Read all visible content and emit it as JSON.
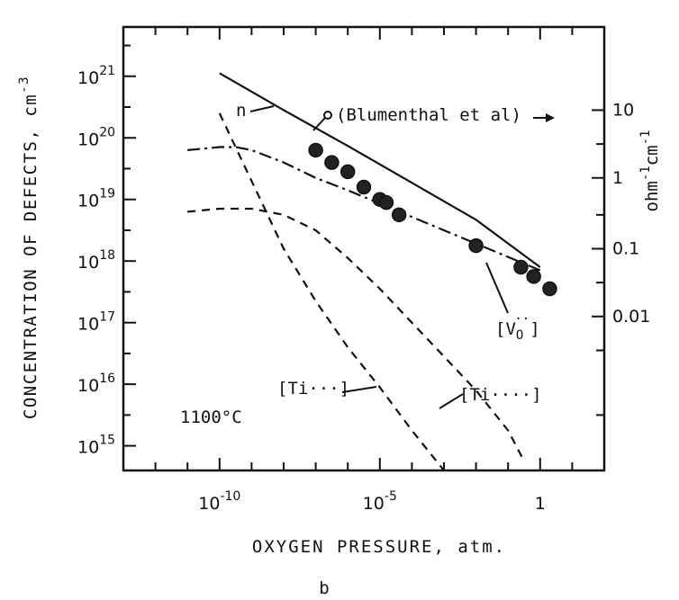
{
  "chart_data": {
    "type": "line",
    "title": "",
    "panel_label": "b",
    "xlabel": "OXYGEN PRESSURE, atm.",
    "ylabel": "CONCENTRATION OF DEFECTS, cm",
    "ylabel_exp": "-3",
    "y2label": "ohm",
    "y2label_exp1": "-1",
    "y2label_cm": "cm",
    "y2label_exp2": "-1",
    "x_scale": "log",
    "y_scale": "log",
    "xlim_log10": [
      -13,
      2
    ],
    "ylim_log10": [
      14.6,
      21.8
    ],
    "x_ticks": [
      {
        "base": "10",
        "exp": "-10",
        "log": -10
      },
      {
        "base": "10",
        "exp": "-5",
        "log": -5
      },
      {
        "base": "1",
        "exp": "",
        "log": 0
      }
    ],
    "y_ticks": [
      {
        "base": "10",
        "exp": "15",
        "log": 15
      },
      {
        "base": "10",
        "exp": "16",
        "log": 16
      },
      {
        "base": "10",
        "exp": "17",
        "log": 17
      },
      {
        "base": "10",
        "exp": "18",
        "log": 18
      },
      {
        "base": "10",
        "exp": "19",
        "log": 19
      },
      {
        "base": "10",
        "exp": "20",
        "log": 20
      },
      {
        "base": "10",
        "exp": "21",
        "log": 21
      }
    ],
    "y2_ticks": [
      {
        "label": "10",
        "y_log": 20.45
      },
      {
        "label": "1",
        "y_log": 19.35
      },
      {
        "label": "0.1",
        "y_log": 18.2
      },
      {
        "label": "0.01",
        "y_log": 17.1
      }
    ],
    "temperature_label": "1100°C",
    "grid": false,
    "series": [
      {
        "name": "n",
        "style": "solid",
        "x_log": [
          -10,
          -8,
          -6,
          -4,
          -2,
          0
        ],
        "y_log": [
          21.05,
          20.45,
          19.87,
          19.27,
          18.67,
          17.9
        ]
      },
      {
        "name": "[Vo··]",
        "style": "dashdot",
        "x_log": [
          -11,
          -10,
          -9.5,
          -9,
          -8,
          -7,
          -6,
          0
        ],
        "y_log": [
          19.8,
          19.85,
          19.85,
          19.8,
          19.6,
          19.35,
          19.15,
          17.85
        ]
      },
      {
        "name": "[Ti···]",
        "style": "dashed",
        "x_log": [
          -10,
          -9,
          -8,
          -7,
          -6,
          -5,
          -4,
          -3
        ],
        "y_log": [
          20.4,
          19.3,
          18.2,
          17.35,
          16.6,
          15.95,
          15.25,
          14.6
        ]
      },
      {
        "name": "[Ti····]",
        "style": "dashed",
        "x_log": [
          -11,
          -10,
          -9,
          -8,
          -7,
          -6,
          -5,
          -4,
          -3,
          -2,
          -1,
          -0.5
        ],
        "y_log": [
          18.8,
          18.85,
          18.85,
          18.75,
          18.5,
          18.05,
          17.55,
          17.0,
          16.45,
          15.9,
          15.25,
          14.75
        ]
      }
    ],
    "data_points": {
      "name": "Blumenthal et al",
      "x_log": [
        -7,
        -6.5,
        -6,
        -5.5,
        -5,
        -4.8,
        -4.4,
        -2,
        -0.6,
        -0.2,
        0.3
      ],
      "y_log": [
        19.8,
        19.6,
        19.45,
        19.2,
        19.0,
        18.95,
        18.75,
        18.25,
        17.9,
        17.75,
        17.55
      ]
    },
    "annotations": {
      "n": "n",
      "blumenthal": "(Blumenthal et al)",
      "vo": "[V",
      "vo_sub": "O",
      "vo_dots": "··",
      "vo_close": "]",
      "ti3": "[Ti···]",
      "ti4": "[Ti····]"
    }
  }
}
